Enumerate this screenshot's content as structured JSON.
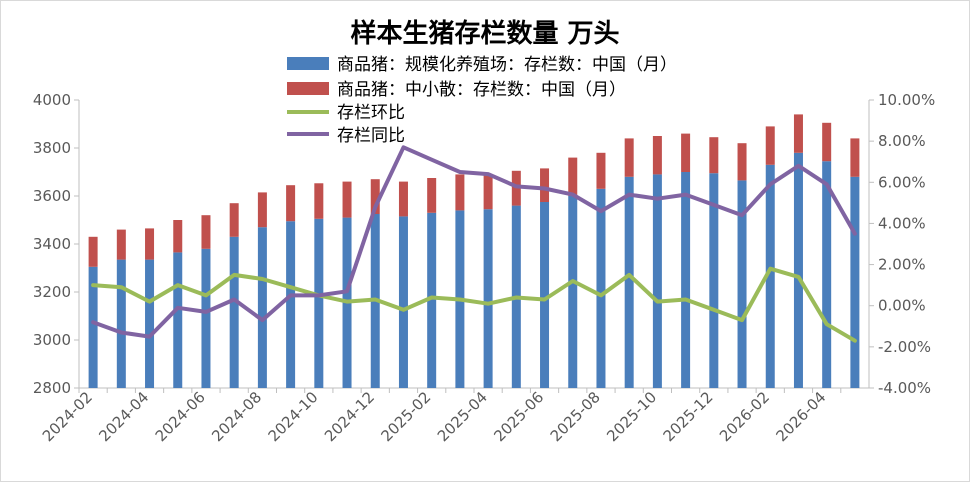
{
  "chart_data": {
    "type": "bar",
    "title": "样本生猪存栏数量 万头",
    "x": [
      "2024-02",
      "2024-03",
      "2024-04",
      "2024-05",
      "2024-06",
      "2024-07",
      "2024-08",
      "2024-09",
      "2024-10",
      "2024-11",
      "2024-12",
      "2025-01",
      "2025-02",
      "2025-03",
      "2025-04",
      "2025-05",
      "2025-06",
      "2025-07",
      "2025-08",
      "2025-09",
      "2025-10",
      "2025-11",
      "2025-12",
      "2026-01",
      "2026-02",
      "2026-03",
      "2026-04",
      "2026-05"
    ],
    "x_tick_labels": [
      "2024-02",
      "2024-04",
      "2024-06",
      "2024-08",
      "2024-10",
      "2024-12",
      "2025-02",
      "2025-04",
      "2025-06",
      "2025-08",
      "2025-10",
      "2025-12",
      "2026-02",
      "2026-04"
    ],
    "y_left": {
      "lim": [
        2800,
        4000
      ],
      "ticks": [
        "2800",
        "3000",
        "3200",
        "3400",
        "3600",
        "3800",
        "4000"
      ]
    },
    "y_right": {
      "lim": [
        -4,
        10
      ],
      "ticks": [
        "-4.00%",
        "-2.00%",
        "0.00%",
        "2.00%",
        "4.00%",
        "6.00%",
        "8.00%",
        "10.00%"
      ]
    },
    "legend_position": "top-center",
    "grid": false,
    "series": [
      {
        "name": "商品猪：规模化养殖场：存栏数：中国（月）",
        "type": "bar-stacked",
        "axis": "left",
        "color": "#4a7ebb",
        "values": [
          3305,
          3335,
          3335,
          3365,
          3380,
          3430,
          3470,
          3495,
          3505,
          3510,
          3525,
          3515,
          3530,
          3540,
          3545,
          3560,
          3575,
          3600,
          3630,
          3680,
          3690,
          3700,
          3695,
          3665,
          3730,
          3780,
          3745,
          3680
        ]
      },
      {
        "name": "商品猪：中小散：存栏数：中国（月）",
        "type": "bar-stacked",
        "axis": "left",
        "color": "#c0504d",
        "values": [
          125,
          125,
          130,
          135,
          140,
          140,
          145,
          150,
          148,
          150,
          145,
          145,
          145,
          150,
          145,
          145,
          140,
          160,
          150,
          160,
          160,
          160,
          150,
          155,
          160,
          160,
          160,
          160
        ]
      },
      {
        "name": "存栏环比",
        "type": "line",
        "axis": "right",
        "color": "#9bbb59",
        "values": [
          1.0,
          0.9,
          0.2,
          1.0,
          0.5,
          1.5,
          1.3,
          0.9,
          0.5,
          0.2,
          0.3,
          -0.2,
          0.4,
          0.3,
          0.1,
          0.4,
          0.3,
          1.2,
          0.5,
          1.5,
          0.2,
          0.3,
          -0.2,
          -0.7,
          1.8,
          1.4,
          -0.9,
          -1.7
        ]
      },
      {
        "name": "存栏同比",
        "type": "line",
        "axis": "right",
        "color": "#8064a2",
        "values": [
          -0.8,
          -1.3,
          -1.5,
          -0.1,
          -0.3,
          0.3,
          -0.7,
          0.5,
          0.5,
          0.7,
          4.8,
          7.7,
          7.1,
          6.5,
          6.4,
          5.8,
          5.7,
          5.4,
          4.6,
          5.4,
          5.2,
          5.4,
          4.9,
          4.4,
          5.9,
          6.8,
          5.9,
          3.5
        ]
      }
    ]
  }
}
